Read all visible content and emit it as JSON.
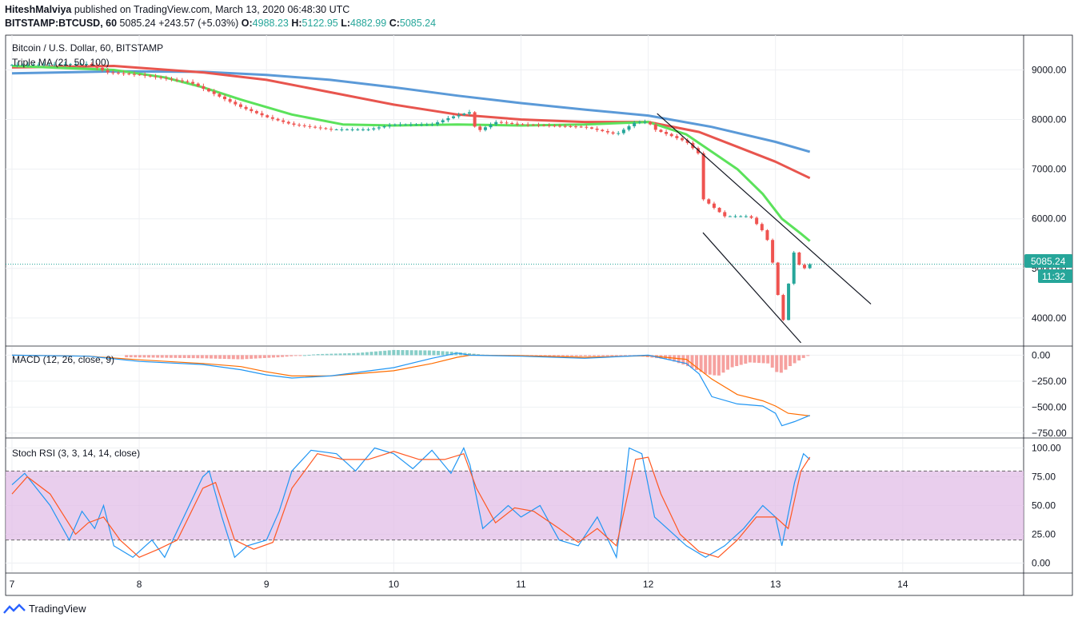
{
  "header": {
    "author": "HiteshMalviya",
    "published": "published on TradingView.com, March 13, 2020 06:48:30 UTC",
    "symbol_line": "BITSTAMP:BTCUSD, 60",
    "last": "5085.24",
    "change": "+243.57 (+5.03%)",
    "o_label": "O:",
    "o_value": "4988.23",
    "h_label": "H:",
    "h_value": "5122.95",
    "l_label": "L:",
    "l_value": "4882.99",
    "c_label": "C:",
    "c_value": "5085.24"
  },
  "legend": {
    "main_title": "Bitcoin / U.S. Dollar, 60, BITSTAMP",
    "ma_title": "Triple MA (21, 50, 100)",
    "macd_title": "MACD (12, 26, close, 9)",
    "stoch_title": "Stoch RSI (3, 3, 14, 14, close)"
  },
  "price_badges": {
    "last_price": "5085.24",
    "countdown": "11:32"
  },
  "footer": {
    "brand": "TradingView"
  },
  "colors": {
    "up": "#26a69a",
    "down": "#ef5350",
    "ma21": "#5be25b",
    "ma50": "#e8554e",
    "ma100": "#5b9ad8",
    "macd": "#2196f3",
    "signal": "#ff6d00",
    "hist_pos": "#26a69a",
    "hist_neg": "#ef5350",
    "band_fill": "#e1bee7",
    "stoch_k": "#2196f3",
    "stoch_d": "#ff5722",
    "badge": "#26a69a"
  },
  "chart_data": [
    {
      "type": "candlestick",
      "title": "Bitcoin / U.S. Dollar, 60, BITSTAMP",
      "x_tick_labels": [
        "7",
        "8",
        "9",
        "10",
        "11",
        "12",
        "13",
        "14"
      ],
      "x_ticks_day": [
        7,
        8,
        9,
        10,
        11,
        12,
        13,
        14
      ],
      "x_range_day": [
        6.95,
        14.95
      ],
      "ylim": [
        3450,
        9700
      ],
      "y_ticks": [
        4000,
        5000,
        6000,
        7000,
        8000,
        9000
      ],
      "y_tick_labels": [
        "4000.00",
        "5000.00",
        "6000.00",
        "7000.00",
        "8000.00",
        "9000.00"
      ],
      "last_price": 5085.24,
      "close_anchors_day": [
        [
          7.0,
          9100
        ],
        [
          7.6,
          9120
        ],
        [
          7.75,
          8950
        ],
        [
          8.0,
          8900
        ],
        [
          8.4,
          8750
        ],
        [
          8.6,
          8500
        ],
        [
          8.8,
          8250
        ],
        [
          9.0,
          8050
        ],
        [
          9.2,
          7900
        ],
        [
          9.5,
          7800
        ],
        [
          9.8,
          7800
        ],
        [
          10.0,
          7900
        ],
        [
          10.3,
          7900
        ],
        [
          10.45,
          8050
        ],
        [
          10.6,
          8150
        ],
        [
          10.65,
          7750
        ],
        [
          10.8,
          7950
        ],
        [
          11.0,
          7900
        ],
        [
          11.5,
          7850
        ],
        [
          11.75,
          7700
        ],
        [
          11.9,
          7950
        ],
        [
          12.0,
          7950
        ],
        [
          12.05,
          7800
        ],
        [
          12.3,
          7550
        ],
        [
          12.4,
          7300
        ],
        [
          12.43,
          6400
        ],
        [
          12.6,
          6050
        ],
        [
          12.8,
          6050
        ],
        [
          12.9,
          5750
        ],
        [
          12.95,
          5500
        ],
        [
          13.0,
          4800
        ],
        [
          13.04,
          4100
        ],
        [
          13.07,
          3900
        ],
        [
          13.1,
          4650
        ],
        [
          13.15,
          5400
        ],
        [
          13.2,
          4950
        ],
        [
          13.27,
          5085
        ]
      ],
      "moving_averages": [
        {
          "name": "MA 21",
          "points": [
            [
              7.0,
              9080
            ],
            [
              7.8,
              9000
            ],
            [
              8.2,
              8850
            ],
            [
              8.5,
              8650
            ],
            [
              8.8,
              8400
            ],
            [
              9.2,
              8100
            ],
            [
              9.6,
              7900
            ],
            [
              10.0,
              7880
            ],
            [
              10.5,
              7900
            ],
            [
              11.0,
              7880
            ],
            [
              11.5,
              7900
            ],
            [
              12.0,
              7950
            ],
            [
              12.3,
              7700
            ],
            [
              12.5,
              7350
            ],
            [
              12.7,
              7000
            ],
            [
              12.9,
              6500
            ],
            [
              13.05,
              6000
            ],
            [
              13.2,
              5700
            ],
            [
              13.27,
              5550
            ]
          ]
        },
        {
          "name": "MA 50",
          "points": [
            [
              7.0,
              9050
            ],
            [
              7.8,
              9080
            ],
            [
              8.5,
              8950
            ],
            [
              9.0,
              8800
            ],
            [
              9.5,
              8550
            ],
            [
              10.0,
              8300
            ],
            [
              10.5,
              8100
            ],
            [
              11.0,
              8000
            ],
            [
              11.5,
              7950
            ],
            [
              12.0,
              7950
            ],
            [
              12.4,
              7750
            ],
            [
              12.7,
              7450
            ],
            [
              13.0,
              7150
            ],
            [
              13.27,
              6820
            ]
          ]
        },
        {
          "name": "MA 100",
          "points": [
            [
              7.0,
              8930
            ],
            [
              7.8,
              8970
            ],
            [
              8.5,
              8960
            ],
            [
              9.0,
              8900
            ],
            [
              9.5,
              8800
            ],
            [
              10.0,
              8650
            ],
            [
              10.5,
              8480
            ],
            [
              11.0,
              8330
            ],
            [
              11.5,
              8200
            ],
            [
              12.0,
              8080
            ],
            [
              12.5,
              7850
            ],
            [
              13.0,
              7550
            ],
            [
              13.27,
              7350
            ]
          ]
        }
      ],
      "trendlines": [
        {
          "name": "upper channel line",
          "from": [
            12.07,
            8120
          ],
          "to": [
            13.75,
            4280
          ]
        },
        {
          "name": "lower channel line",
          "from": [
            12.43,
            5720
          ],
          "to": [
            13.2,
            3500
          ]
        }
      ]
    },
    {
      "type": "line",
      "title": "MACD (12, 26, close, 9)",
      "ylim": [
        -790,
        80
      ],
      "y_ticks": [
        0,
        -250,
        -500,
        -750
      ],
      "y_tick_labels": [
        "0.00",
        "−250.00",
        "−500.00",
        "−750.00"
      ],
      "series": [
        {
          "name": "MACD",
          "points": [
            [
              7.0,
              0
            ],
            [
              7.6,
              -10
            ],
            [
              8.0,
              -60
            ],
            [
              8.5,
              -90
            ],
            [
              8.8,
              -140
            ],
            [
              9.0,
              -190
            ],
            [
              9.2,
              -220
            ],
            [
              9.5,
              -200
            ],
            [
              10.0,
              -120
            ],
            [
              10.3,
              -30
            ],
            [
              10.5,
              20
            ],
            [
              10.6,
              0
            ],
            [
              11.0,
              -10
            ],
            [
              11.5,
              -30
            ],
            [
              12.0,
              0
            ],
            [
              12.3,
              -80
            ],
            [
              12.4,
              -180
            ],
            [
              12.5,
              -400
            ],
            [
              12.7,
              -470
            ],
            [
              12.9,
              -490
            ],
            [
              13.0,
              -560
            ],
            [
              13.05,
              -680
            ],
            [
              13.15,
              -640
            ],
            [
              13.27,
              -580
            ]
          ]
        },
        {
          "name": "Signal",
          "points": [
            [
              7.0,
              0
            ],
            [
              7.6,
              -10
            ],
            [
              8.0,
              -45
            ],
            [
              8.5,
              -80
            ],
            [
              8.8,
              -110
            ],
            [
              9.0,
              -160
            ],
            [
              9.2,
              -200
            ],
            [
              9.5,
              -200
            ],
            [
              10.0,
              -150
            ],
            [
              10.3,
              -80
            ],
            [
              10.5,
              -20
            ],
            [
              10.6,
              0
            ],
            [
              11.0,
              -5
            ],
            [
              11.5,
              -20
            ],
            [
              12.0,
              -5
            ],
            [
              12.3,
              -40
            ],
            [
              12.5,
              -230
            ],
            [
              12.7,
              -380
            ],
            [
              12.9,
              -440
            ],
            [
              13.0,
              -490
            ],
            [
              13.1,
              -560
            ],
            [
              13.27,
              -585
            ]
          ]
        }
      ],
      "histogram": [
        [
          7.9,
          -20
        ],
        [
          8.2,
          -25
        ],
        [
          8.5,
          -30
        ],
        [
          8.8,
          -40
        ],
        [
          9.1,
          -20
        ],
        [
          9.4,
          10
        ],
        [
          9.7,
          20
        ],
        [
          10.0,
          50
        ],
        [
          10.3,
          45
        ],
        [
          10.5,
          30
        ],
        [
          10.7,
          5
        ],
        [
          11.0,
          -5
        ],
        [
          11.3,
          -10
        ],
        [
          11.6,
          -10
        ],
        [
          11.9,
          -5
        ],
        [
          12.15,
          -40
        ],
        [
          12.3,
          -100
        ],
        [
          12.45,
          -180
        ],
        [
          12.55,
          -200
        ],
        [
          12.65,
          -120
        ],
        [
          12.8,
          -70
        ],
        [
          12.95,
          -80
        ],
        [
          13.0,
          -160
        ],
        [
          13.05,
          -170
        ],
        [
          13.12,
          -100
        ],
        [
          13.2,
          -40
        ],
        [
          13.27,
          5
        ]
      ]
    },
    {
      "type": "line",
      "title": "Stoch RSI (3, 3, 14, 14, close)",
      "ylim": [
        -8,
        108
      ],
      "y_ticks": [
        100,
        75,
        50,
        25,
        0
      ],
      "y_tick_labels": [
        "100.00",
        "75.00",
        "50.00",
        "25.00",
        "0.00"
      ],
      "bands": {
        "upper": 80,
        "lower": 20
      },
      "series": [
        {
          "name": "%K",
          "points": [
            [
              7.0,
              68
            ],
            [
              7.1,
              78
            ],
            [
              7.3,
              50
            ],
            [
              7.45,
              20
            ],
            [
              7.55,
              45
            ],
            [
              7.65,
              30
            ],
            [
              7.72,
              50
            ],
            [
              7.8,
              15
            ],
            [
              7.95,
              5
            ],
            [
              8.1,
              20
            ],
            [
              8.2,
              5
            ],
            [
              8.35,
              40
            ],
            [
              8.5,
              75
            ],
            [
              8.55,
              80
            ],
            [
              8.65,
              40
            ],
            [
              8.75,
              5
            ],
            [
              8.85,
              15
            ],
            [
              9.0,
              20
            ],
            [
              9.1,
              45
            ],
            [
              9.2,
              80
            ],
            [
              9.35,
              98
            ],
            [
              9.55,
              95
            ],
            [
              9.7,
              80
            ],
            [
              9.85,
              100
            ],
            [
              10.0,
              95
            ],
            [
              10.15,
              82
            ],
            [
              10.3,
              98
            ],
            [
              10.45,
              78
            ],
            [
              10.55,
              100
            ],
            [
              10.6,
              85
            ],
            [
              10.7,
              30
            ],
            [
              10.8,
              40
            ],
            [
              10.9,
              50
            ],
            [
              11.0,
              40
            ],
            [
              11.15,
              50
            ],
            [
              11.3,
              20
            ],
            [
              11.45,
              15
            ],
            [
              11.6,
              40
            ],
            [
              11.75,
              5
            ],
            [
              11.85,
              100
            ],
            [
              11.95,
              95
            ],
            [
              12.05,
              40
            ],
            [
              12.15,
              30
            ],
            [
              12.3,
              15
            ],
            [
              12.45,
              5
            ],
            [
              12.6,
              15
            ],
            [
              12.75,
              30
            ],
            [
              12.9,
              50
            ],
            [
              13.0,
              40
            ],
            [
              13.05,
              15
            ],
            [
              13.15,
              70
            ],
            [
              13.22,
              95
            ],
            [
              13.27,
              90
            ]
          ]
        },
        {
          "name": "%D",
          "points": [
            [
              7.0,
              60
            ],
            [
              7.12,
              75
            ],
            [
              7.3,
              60
            ],
            [
              7.5,
              25
            ],
            [
              7.6,
              35
            ],
            [
              7.72,
              40
            ],
            [
              7.85,
              20
            ],
            [
              8.0,
              5
            ],
            [
              8.15,
              12
            ],
            [
              8.3,
              20
            ],
            [
              8.5,
              65
            ],
            [
              8.6,
              70
            ],
            [
              8.75,
              20
            ],
            [
              8.9,
              12
            ],
            [
              9.05,
              18
            ],
            [
              9.2,
              65
            ],
            [
              9.4,
              95
            ],
            [
              9.6,
              90
            ],
            [
              9.8,
              90
            ],
            [
              10.0,
              97
            ],
            [
              10.2,
              90
            ],
            [
              10.4,
              90
            ],
            [
              10.55,
              95
            ],
            [
              10.65,
              65
            ],
            [
              10.8,
              35
            ],
            [
              10.95,
              48
            ],
            [
              11.1,
              45
            ],
            [
              11.3,
              30
            ],
            [
              11.45,
              18
            ],
            [
              11.6,
              30
            ],
            [
              11.75,
              15
            ],
            [
              11.9,
              90
            ],
            [
              12.0,
              92
            ],
            [
              12.1,
              60
            ],
            [
              12.25,
              25
            ],
            [
              12.4,
              10
            ],
            [
              12.55,
              5
            ],
            [
              12.7,
              20
            ],
            [
              12.85,
              40
            ],
            [
              13.0,
              40
            ],
            [
              13.1,
              30
            ],
            [
              13.2,
              80
            ],
            [
              13.27,
              92
            ]
          ]
        }
      ]
    }
  ]
}
